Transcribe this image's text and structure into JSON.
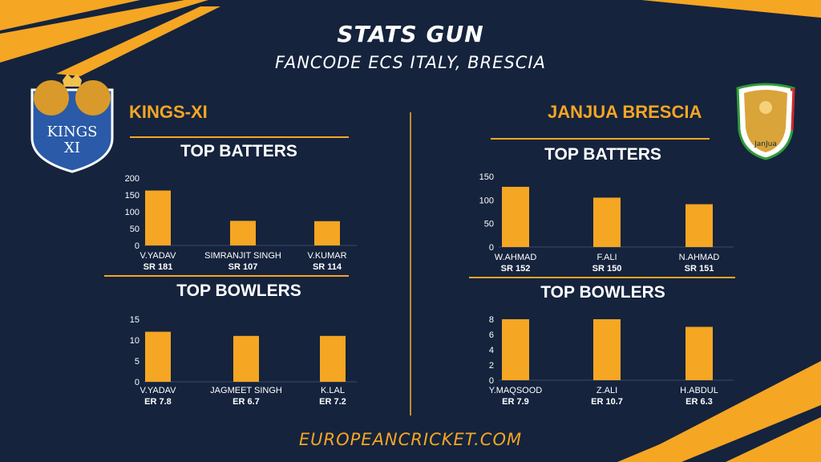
{
  "header": {
    "title": "STATS GUN",
    "subtitle": "FANCODE ECS ITALY, BRESCIA"
  },
  "teams": {
    "left": {
      "name": "KINGS-XI",
      "logo_text_1": "KINGS",
      "logo_text_2": "XI"
    },
    "right": {
      "name": "JANJUA BRESCIA",
      "logo_text": "JanJua"
    }
  },
  "sections": {
    "left_batters_title": "TOP BATTERS",
    "left_bowlers_title": "TOP BOWLERS",
    "right_batters_title": "TOP BATTERS",
    "right_bowlers_title": "TOP BOWLERS"
  },
  "footer": {
    "text": "EUROPEANCRICKET.COM"
  },
  "colors": {
    "background": "#15233d",
    "accent": "#f5a623",
    "stripe": "#f5a623",
    "text": "#ffffff"
  },
  "chart_data": [
    {
      "type": "bar",
      "title": "TOP BATTERS",
      "team": "KINGS-XI",
      "categories": [
        "V.YADAV",
        "SIMRANJIT SINGH",
        "V.KUMAR"
      ],
      "sublabels": [
        "SR 181",
        "SR 107",
        "SR 114"
      ],
      "values": [
        163,
        73,
        72
      ],
      "ylim": [
        0,
        200
      ],
      "yticks": [
        "0",
        "50",
        "100",
        "150",
        "200"
      ],
      "color": "#f5a623"
    },
    {
      "type": "bar",
      "title": "TOP BOWLERS",
      "team": "KINGS-XI",
      "categories": [
        "V.YADAV",
        "JAGMEET SINGH",
        "K.LAL"
      ],
      "sublabels": [
        "ER 7.8",
        "ER 6.7",
        "ER 7.2"
      ],
      "values": [
        12,
        11,
        11
      ],
      "ylim": [
        0,
        15
      ],
      "yticks": [
        "0",
        "5",
        "10",
        "15"
      ],
      "color": "#f5a623"
    },
    {
      "type": "bar",
      "title": "TOP BATTERS",
      "team": "JANJUA BRESCIA",
      "categories": [
        "W.AHMAD",
        "F.ALI",
        "N.AHMAD"
      ],
      "sublabels": [
        "SR 152",
        "SR 150",
        "SR 151"
      ],
      "values": [
        128,
        105,
        91
      ],
      "ylim": [
        0,
        150
      ],
      "yticks": [
        "0",
        "50",
        "100",
        "150"
      ],
      "color": "#f5a623"
    },
    {
      "type": "bar",
      "title": "TOP BOWLERS",
      "team": "JANJUA BRESCIA",
      "categories": [
        "Y.MAQSOOD",
        "Z.ALI",
        "H.ABDUL"
      ],
      "sublabels": [
        "ER 7.9",
        "ER 10.7",
        "ER 6.3"
      ],
      "values": [
        8,
        8,
        7
      ],
      "ylim": [
        0,
        8
      ],
      "yticks": [
        "0",
        "2",
        "4",
        "6",
        "8"
      ],
      "color": "#f5a623"
    }
  ]
}
